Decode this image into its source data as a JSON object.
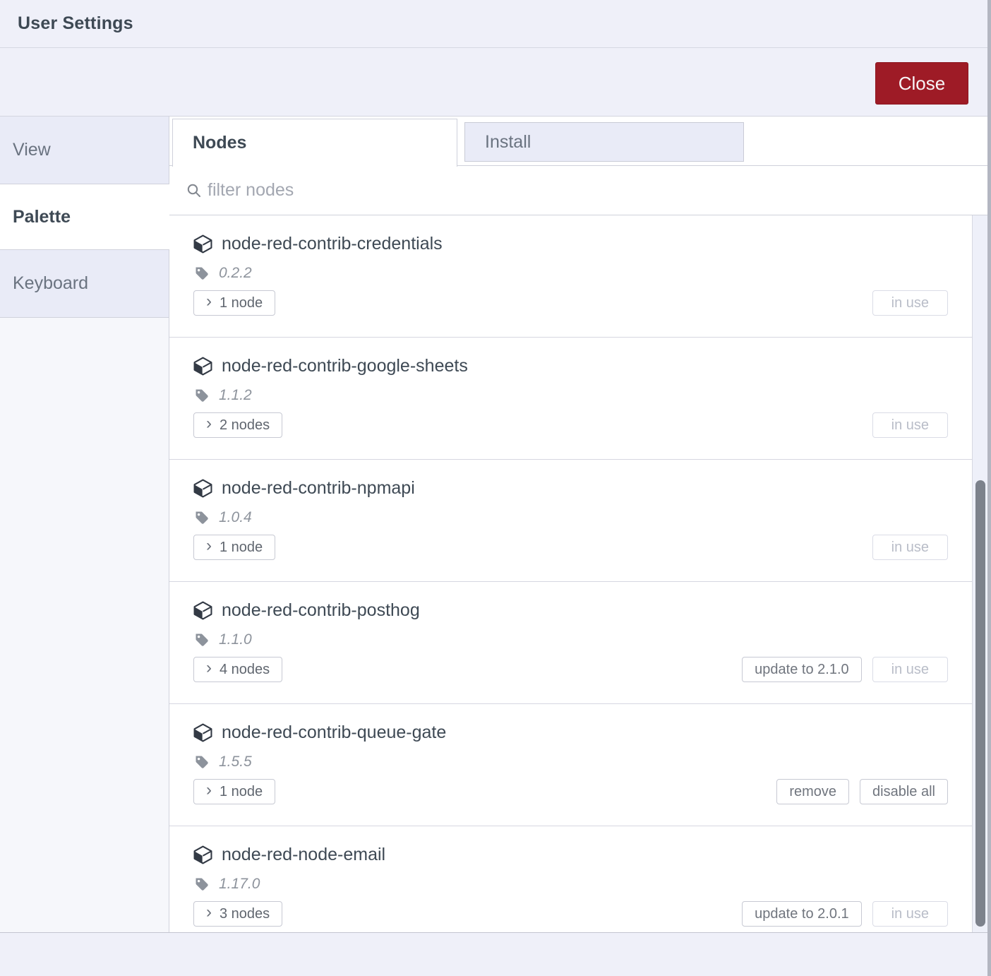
{
  "window": {
    "title": "User Settings"
  },
  "toolbar": {
    "close_label": "Close"
  },
  "sidebar": {
    "items": [
      {
        "label": "View",
        "selected": false
      },
      {
        "label": "Palette",
        "selected": true
      },
      {
        "label": "Keyboard",
        "selected": false
      }
    ]
  },
  "tabs": [
    {
      "label": "Nodes",
      "active": true
    },
    {
      "label": "Install",
      "active": false
    }
  ],
  "filter": {
    "placeholder": "filter nodes"
  },
  "packages": [
    {
      "name": "node-red-contrib-credentials",
      "version": "0.2.2",
      "node_count_label": "1 node",
      "actions": [
        {
          "label": "in use",
          "disabled": true
        }
      ]
    },
    {
      "name": "node-red-contrib-google-sheets",
      "version": "1.1.2",
      "node_count_label": "2 nodes",
      "actions": [
        {
          "label": "in use",
          "disabled": true
        }
      ]
    },
    {
      "name": "node-red-contrib-npmapi",
      "version": "1.0.4",
      "node_count_label": "1 node",
      "actions": [
        {
          "label": "in use",
          "disabled": true
        }
      ]
    },
    {
      "name": "node-red-contrib-posthog",
      "version": "1.1.0",
      "node_count_label": "4 nodes",
      "actions": [
        {
          "label": "update to 2.1.0",
          "disabled": false
        },
        {
          "label": "in use",
          "disabled": true
        }
      ]
    },
    {
      "name": "node-red-contrib-queue-gate",
      "version": "1.5.5",
      "node_count_label": "1 node",
      "actions": [
        {
          "label": "remove",
          "disabled": false
        },
        {
          "label": "disable all",
          "disabled": false
        }
      ]
    },
    {
      "name": "node-red-node-email",
      "version": "1.17.0",
      "node_count_label": "3 nodes",
      "actions": [
        {
          "label": "update to 2.0.1",
          "disabled": false
        },
        {
          "label": "in use",
          "disabled": true
        }
      ]
    }
  ],
  "colors": {
    "close_button": "#9e1b26",
    "header_lavender": "#eff0f9",
    "panel_lavender": "#e9ebf7",
    "text_dark": "#3e4954",
    "text_gray": "#6a7380",
    "text_disabled": "#b9bdc8",
    "scroll_thumb": "#7d828c"
  }
}
